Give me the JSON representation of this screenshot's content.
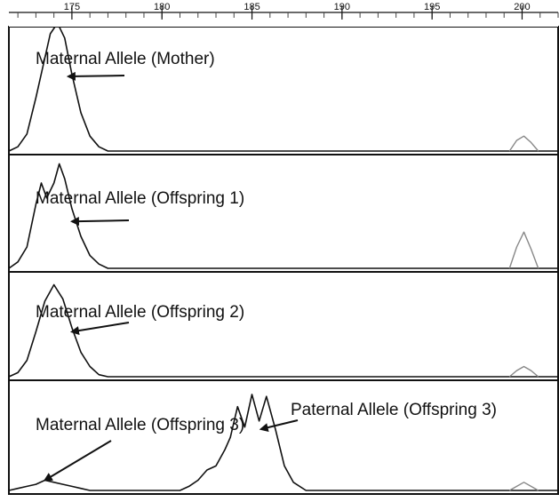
{
  "chart_data": {
    "type": "line",
    "x_axis": {
      "range": [
        171.5,
        202
      ],
      "major_ticks": [
        175,
        180,
        185,
        190,
        195,
        200
      ],
      "tick_labels": [
        "175",
        "180",
        "185",
        "190",
        "195",
        "200"
      ],
      "minor_tick_step": 1,
      "position": "top"
    },
    "panels": [
      {
        "id": "mother",
        "annotations": [
          {
            "text": "Maternal Allele (Mother)",
            "arrow_to": [
              174.8,
              0.35
            ]
          }
        ],
        "series": [
          {
            "color": "#111111",
            "points": [
              [
                171.5,
                0.0
              ],
              [
                172.0,
                0.02
              ],
              [
                172.5,
                0.08
              ],
              [
                173.0,
                0.25
              ],
              [
                173.4,
                0.4
              ],
              [
                173.8,
                0.55
              ],
              [
                174.2,
                0.6
              ],
              [
                174.6,
                0.53
              ],
              [
                175.0,
                0.36
              ],
              [
                175.5,
                0.18
              ],
              [
                176.0,
                0.07
              ],
              [
                176.5,
                0.02
              ],
              [
                177.0,
                0.0
              ],
              [
                202.0,
                0.0
              ]
            ]
          },
          {
            "color": "#888888",
            "points": [
              [
                199.3,
                0.0
              ],
              [
                199.7,
                0.05
              ],
              [
                200.1,
                0.07
              ],
              [
                200.5,
                0.04
              ],
              [
                200.9,
                0.0
              ]
            ]
          }
        ]
      },
      {
        "id": "offspring1",
        "annotations": [
          {
            "text": "Maternal Allele (Offspring 1)",
            "arrow_to": [
              175.0,
              0.22
            ]
          }
        ],
        "series": [
          {
            "color": "#111111",
            "points": [
              [
                171.5,
                0.0
              ],
              [
                172.0,
                0.03
              ],
              [
                172.5,
                0.1
              ],
              [
                173.0,
                0.3
              ],
              [
                173.3,
                0.4
              ],
              [
                173.6,
                0.33
              ],
              [
                174.0,
                0.4
              ],
              [
                174.3,
                0.49
              ],
              [
                174.6,
                0.42
              ],
              [
                175.0,
                0.28
              ],
              [
                175.5,
                0.15
              ],
              [
                176.0,
                0.06
              ],
              [
                176.5,
                0.02
              ],
              [
                177.0,
                0.0
              ],
              [
                202.0,
                0.0
              ]
            ]
          },
          {
            "color": "#888888",
            "points": [
              [
                199.3,
                0.0
              ],
              [
                199.7,
                0.1
              ],
              [
                200.1,
                0.17
              ],
              [
                200.5,
                0.09
              ],
              [
                200.9,
                0.0
              ]
            ]
          }
        ]
      },
      {
        "id": "offspring2",
        "annotations": [
          {
            "text": "Maternal Allele (Offspring 2)",
            "arrow_to": [
              175.0,
              0.22
            ]
          }
        ],
        "series": [
          {
            "color": "#111111",
            "points": [
              [
                171.5,
                0.0
              ],
              [
                172.0,
                0.02
              ],
              [
                172.5,
                0.08
              ],
              [
                173.0,
                0.22
              ],
              [
                173.5,
                0.37
              ],
              [
                174.0,
                0.45
              ],
              [
                174.5,
                0.38
              ],
              [
                175.0,
                0.24
              ],
              [
                175.5,
                0.12
              ],
              [
                176.0,
                0.05
              ],
              [
                176.5,
                0.01
              ],
              [
                177.0,
                0.0
              ],
              [
                202.0,
                0.0
              ]
            ]
          },
          {
            "color": "#888888",
            "points": [
              [
                199.3,
                0.0
              ],
              [
                199.7,
                0.03
              ],
              [
                200.1,
                0.05
              ],
              [
                200.5,
                0.03
              ],
              [
                200.9,
                0.0
              ]
            ]
          }
        ]
      },
      {
        "id": "offspring3",
        "annotations": [
          {
            "text": "Maternal Allele (Offspring 3)",
            "arrow_to": [
              173.5,
              0.05
            ]
          },
          {
            "text": "Paternal Allele (Offspring 3)",
            "arrow_to": [
              185.5,
              0.3
            ]
          }
        ],
        "series": [
          {
            "color": "#111111",
            "points": [
              [
                171.5,
                0.0
              ],
              [
                172.0,
                0.01
              ],
              [
                172.5,
                0.02
              ],
              [
                173.0,
                0.03
              ],
              [
                173.5,
                0.05
              ],
              [
                174.0,
                0.04
              ],
              [
                174.5,
                0.03
              ],
              [
                175.0,
                0.02
              ],
              [
                175.5,
                0.01
              ],
              [
                176.0,
                0.0
              ],
              [
                181.0,
                0.0
              ],
              [
                181.5,
                0.02
              ],
              [
                182.0,
                0.05
              ],
              [
                182.5,
                0.1
              ],
              [
                183.0,
                0.12
              ],
              [
                183.5,
                0.2
              ],
              [
                183.8,
                0.26
              ],
              [
                184.2,
                0.41
              ],
              [
                184.6,
                0.31
              ],
              [
                185.0,
                0.47
              ],
              [
                185.4,
                0.34
              ],
              [
                185.8,
                0.46
              ],
              [
                186.3,
                0.3
              ],
              [
                186.8,
                0.12
              ],
              [
                187.3,
                0.04
              ],
              [
                188.0,
                0.0
              ],
              [
                202.0,
                0.0
              ]
            ]
          },
          {
            "color": "#888888",
            "points": [
              [
                199.3,
                0.0
              ],
              [
                199.7,
                0.02
              ],
              [
                200.1,
                0.04
              ],
              [
                200.5,
                0.02
              ],
              [
                200.9,
                0.0
              ]
            ]
          }
        ]
      }
    ]
  }
}
